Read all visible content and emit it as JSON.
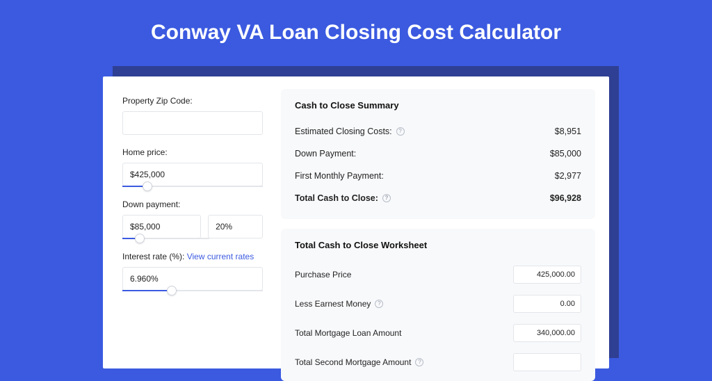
{
  "colors": {
    "page_bg": "#3b5ae0",
    "card_bg": "#ffffff",
    "shadow_bg": "#2f3f93",
    "panel_bg": "#f8f9fb",
    "border": "#e3e5ea",
    "text": "#222222",
    "link": "#3b5ae0"
  },
  "header": {
    "title": "Conway VA Loan Closing Cost Calculator"
  },
  "form": {
    "zip": {
      "label": "Property Zip Code:",
      "value": ""
    },
    "home_price": {
      "label": "Home price:",
      "value": "$425,000",
      "slider_pct": 18
    },
    "down_payment": {
      "label": "Down payment:",
      "amount": "$85,000",
      "percent": "20%",
      "slider_pct": 20
    },
    "interest_rate": {
      "label": "Interest rate (%):",
      "link_text": "View current rates",
      "value": "6.960%",
      "slider_pct": 35
    }
  },
  "summary": {
    "title": "Cash to Close Summary",
    "rows": [
      {
        "label": "Estimated Closing Costs:",
        "help": true,
        "value": "$8,951",
        "bold": false
      },
      {
        "label": "Down Payment:",
        "help": false,
        "value": "$85,000",
        "bold": false
      },
      {
        "label": "First Monthly Payment:",
        "help": false,
        "value": "$2,977",
        "bold": false
      },
      {
        "label": "Total Cash to Close:",
        "help": true,
        "value": "$96,928",
        "bold": true
      }
    ]
  },
  "worksheet": {
    "title": "Total Cash to Close Worksheet",
    "rows": [
      {
        "label": "Purchase Price",
        "help": false,
        "value": "425,000.00"
      },
      {
        "label": "Less Earnest Money",
        "help": true,
        "value": "0.00"
      },
      {
        "label": "Total Mortgage Loan Amount",
        "help": false,
        "value": "340,000.00"
      },
      {
        "label": "Total Second Mortgage Amount",
        "help": true,
        "value": ""
      }
    ]
  }
}
